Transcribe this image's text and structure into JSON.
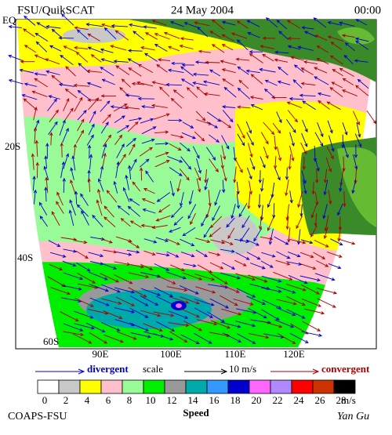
{
  "header": {
    "left": "FSU/QuikSCAT",
    "center": "24 May 2004",
    "right": "00:00"
  },
  "map": {
    "lat_labels": [
      "EQ",
      "20S",
      "40S",
      "60S"
    ],
    "lon_labels": [
      "90E",
      "100E",
      "110E",
      "120E"
    ]
  },
  "legend": {
    "divergent": "divergent",
    "scale": "scale",
    "scale_value": "10 m/s",
    "convergent": "convergent"
  },
  "colorbar": {
    "ticks": [
      "0",
      "2",
      "4",
      "6",
      "8",
      "10",
      "12",
      "14",
      "16",
      "18",
      "20",
      "22",
      "24",
      "26",
      "28"
    ],
    "unit": "m/s",
    "title": "Speed",
    "colors": [
      "#ffffff",
      "#c8c8c8",
      "#ffff00",
      "#ffc0cb",
      "#98fb98",
      "#00ee00",
      "#999999",
      "#00aaaa",
      "#3399ff",
      "#0000cc",
      "#ff66ff",
      "#b088ff",
      "#ff0000",
      "#cc3300",
      "#000000"
    ]
  },
  "footer": {
    "left": "COAPS-FSU",
    "right": "Yan Gu"
  }
}
